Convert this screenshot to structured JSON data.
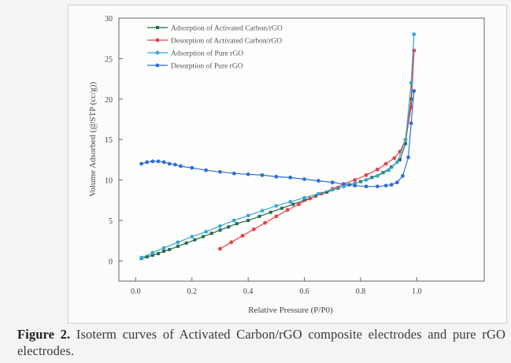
{
  "caption": {
    "label": "Figure 2.",
    "text": "Isoterm curves of Activated Carbon/rGO composite electrodes and pure rGO electrodes."
  },
  "chart_data": {
    "type": "line",
    "title": "",
    "xlabel": "Relative Pressure (P/P0)",
    "ylabel": "Volume Adsorbed (@STP (cc/g))",
    "xlim": [
      -0.06,
      1.24
    ],
    "ylim": [
      -2.5,
      30
    ],
    "xticks": [
      0.0,
      0.2,
      0.4,
      0.6,
      0.8,
      1.0
    ],
    "xtick_labels": [
      "0.0",
      "0.2",
      "0.4",
      "0.6",
      "0.8",
      "1.0"
    ],
    "yticks": [
      0,
      5,
      10,
      15,
      20,
      25,
      30
    ],
    "ytick_labels": [
      "0",
      "5",
      "10",
      "15",
      "20",
      "25",
      "30"
    ],
    "grid": false,
    "legend_position": "top-left",
    "series": [
      {
        "name": "Adsorption of Activated Carbon/rGO",
        "color": "#2a6a4a",
        "marker": "square",
        "x": [
          0.02,
          0.04,
          0.06,
          0.08,
          0.1,
          0.12,
          0.15,
          0.18,
          0.21,
          0.24,
          0.27,
          0.3,
          0.33,
          0.36,
          0.4,
          0.44,
          0.48,
          0.52,
          0.56,
          0.6,
          0.64,
          0.68,
          0.72,
          0.76,
          0.8,
          0.84,
          0.88,
          0.91,
          0.94,
          0.96,
          0.98,
          0.99
        ],
        "y": [
          0.3,
          0.5,
          0.7,
          0.9,
          1.2,
          1.4,
          1.8,
          2.2,
          2.6,
          3.0,
          3.4,
          3.8,
          4.2,
          4.6,
          5.0,
          5.5,
          6.0,
          6.5,
          7.0,
          7.5,
          8.0,
          8.5,
          9.0,
          9.4,
          9.8,
          10.3,
          10.9,
          11.6,
          12.5,
          14.5,
          20.0,
          26.0
        ]
      },
      {
        "name": "Desorption of Activated Carbon/rGO",
        "color": "#e8404a",
        "marker": "dot",
        "x": [
          0.3,
          0.34,
          0.38,
          0.42,
          0.46,
          0.5,
          0.54,
          0.58,
          0.62,
          0.66,
          0.7,
          0.74,
          0.78,
          0.82,
          0.86,
          0.89,
          0.92,
          0.94,
          0.96,
          0.98,
          0.99
        ],
        "y": [
          1.5,
          2.3,
          3.1,
          3.9,
          4.7,
          5.5,
          6.3,
          7.0,
          7.7,
          8.3,
          8.9,
          9.5,
          10.0,
          10.6,
          11.3,
          12.0,
          12.7,
          13.5,
          15.0,
          19.0,
          26.0
        ]
      },
      {
        "name": "Adsorption of Pure rGO",
        "color": "#3aa8d0",
        "marker": "dot",
        "x": [
          0.02,
          0.06,
          0.1,
          0.15,
          0.2,
          0.25,
          0.3,
          0.35,
          0.4,
          0.45,
          0.5,
          0.55,
          0.6,
          0.65,
          0.7,
          0.74,
          0.78,
          0.82,
          0.86,
          0.9,
          0.93,
          0.96,
          0.98,
          0.99
        ],
        "y": [
          0.4,
          1.0,
          1.6,
          2.3,
          3.0,
          3.6,
          4.3,
          5.0,
          5.6,
          6.2,
          6.8,
          7.3,
          7.8,
          8.3,
          8.8,
          9.2,
          9.6,
          10.0,
          10.5,
          11.2,
          12.2,
          15.0,
          22.0,
          28.0
        ]
      },
      {
        "name": "Desorption of Pure rGO",
        "color": "#2f6fd8",
        "marker": "dot",
        "x": [
          0.02,
          0.04,
          0.06,
          0.08,
          0.1,
          0.12,
          0.14,
          0.16,
          0.2,
          0.25,
          0.3,
          0.35,
          0.4,
          0.45,
          0.5,
          0.55,
          0.6,
          0.65,
          0.7,
          0.74,
          0.78,
          0.82,
          0.86,
          0.89,
          0.91,
          0.93,
          0.95,
          0.97,
          0.98,
          0.99
        ],
        "y": [
          12.0,
          12.2,
          12.3,
          12.3,
          12.2,
          12.0,
          11.9,
          11.7,
          11.5,
          11.2,
          11.0,
          10.8,
          10.7,
          10.6,
          10.4,
          10.3,
          10.1,
          9.9,
          9.7,
          9.5,
          9.3,
          9.2,
          9.2,
          9.3,
          9.4,
          9.7,
          10.5,
          12.8,
          17.0,
          21.0
        ]
      }
    ]
  }
}
